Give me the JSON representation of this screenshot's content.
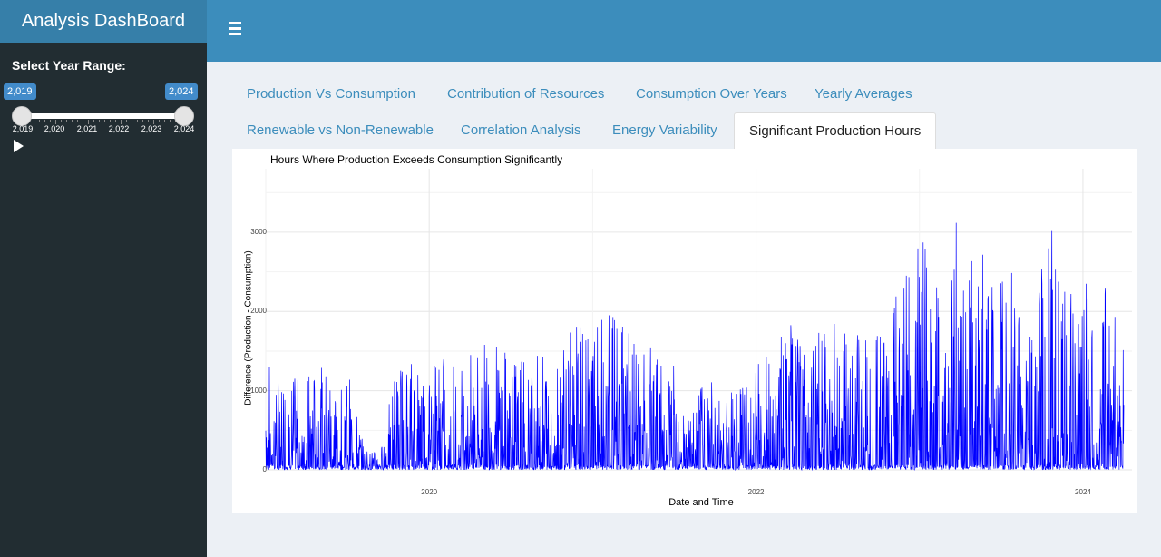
{
  "app": {
    "title": "Analysis DashBoard"
  },
  "header": {
    "menu_icon": "hamburger-menu-icon"
  },
  "sidebar": {
    "slider_label": "Select Year Range:",
    "range": {
      "min_value": "2,019",
      "max_value": "2,024"
    },
    "tick_labels": [
      "2,019",
      "2,020",
      "2,021",
      "2,022",
      "2,023",
      "2,024"
    ],
    "play_icon": "play-icon"
  },
  "tabs": [
    {
      "label": "Production Vs Consumption",
      "active": false
    },
    {
      "label": "Contribution of Resources",
      "active": false
    },
    {
      "label": "Consumption Over Years",
      "active": false
    },
    {
      "label": "Yearly Averages",
      "active": false
    },
    {
      "label": "Renewable vs Non-Renewable",
      "active": false
    },
    {
      "label": "Correlation Analysis",
      "active": false
    },
    {
      "label": "Energy Variability",
      "active": false
    },
    {
      "label": "Significant Production Hours",
      "active": true
    }
  ],
  "colors": {
    "series": "#0000ff",
    "header": "#3c8dbc",
    "sidebar": "#222d32"
  },
  "chart_data": {
    "type": "line",
    "title": "Hours Where Production Exceeds Consumption Significantly",
    "xlabel": "Date and Time",
    "ylabel": "Difference (Production - Consumption)",
    "x_ticks": [
      "2020",
      "2022",
      "2024"
    ],
    "y_ticks": [
      "0",
      "1000",
      "2000",
      "3000"
    ],
    "xlim": [
      2019.0,
      2024.3
    ],
    "ylim": [
      0,
      3800
    ],
    "grid": true,
    "series": [
      {
        "color": "#0000ff",
        "x": [
          2019.0,
          2019.1,
          2019.2,
          2019.3,
          2019.4,
          2019.5,
          2019.6,
          2019.7,
          2019.8,
          2019.9,
          2020.0,
          2020.1,
          2020.2,
          2020.3,
          2020.4,
          2020.5,
          2020.6,
          2020.7,
          2020.8,
          2020.9,
          2021.0,
          2021.1,
          2021.2,
          2021.3,
          2021.4,
          2021.5,
          2021.6,
          2021.7,
          2021.8,
          2021.9,
          2022.0,
          2022.1,
          2022.2,
          2022.3,
          2022.4,
          2022.5,
          2022.6,
          2022.7,
          2022.8,
          2022.9,
          2023.0,
          2023.1,
          2023.2,
          2023.3,
          2023.4,
          2023.5,
          2023.6,
          2023.7,
          2023.8,
          2023.9,
          2024.0,
          2024.1,
          2024.2,
          2024.25
        ],
        "y_peak": [
          1400,
          1250,
          1150,
          1300,
          1300,
          1300,
          300,
          200,
          1400,
          1450,
          1500,
          1450,
          1350,
          1600,
          1650,
          1500,
          1350,
          1550,
          1750,
          1850,
          1700,
          2050,
          1850,
          1700,
          1450,
          1300,
          650,
          1300,
          1350,
          1450,
          1400,
          1500,
          1850,
          1750,
          1850,
          1900,
          1700,
          1800,
          1900,
          2900,
          3050,
          2500,
          3400,
          2700,
          2800,
          2400,
          2600,
          2200,
          3100,
          2400,
          2600,
          2900,
          2200,
          1800
        ]
      }
    ]
  }
}
